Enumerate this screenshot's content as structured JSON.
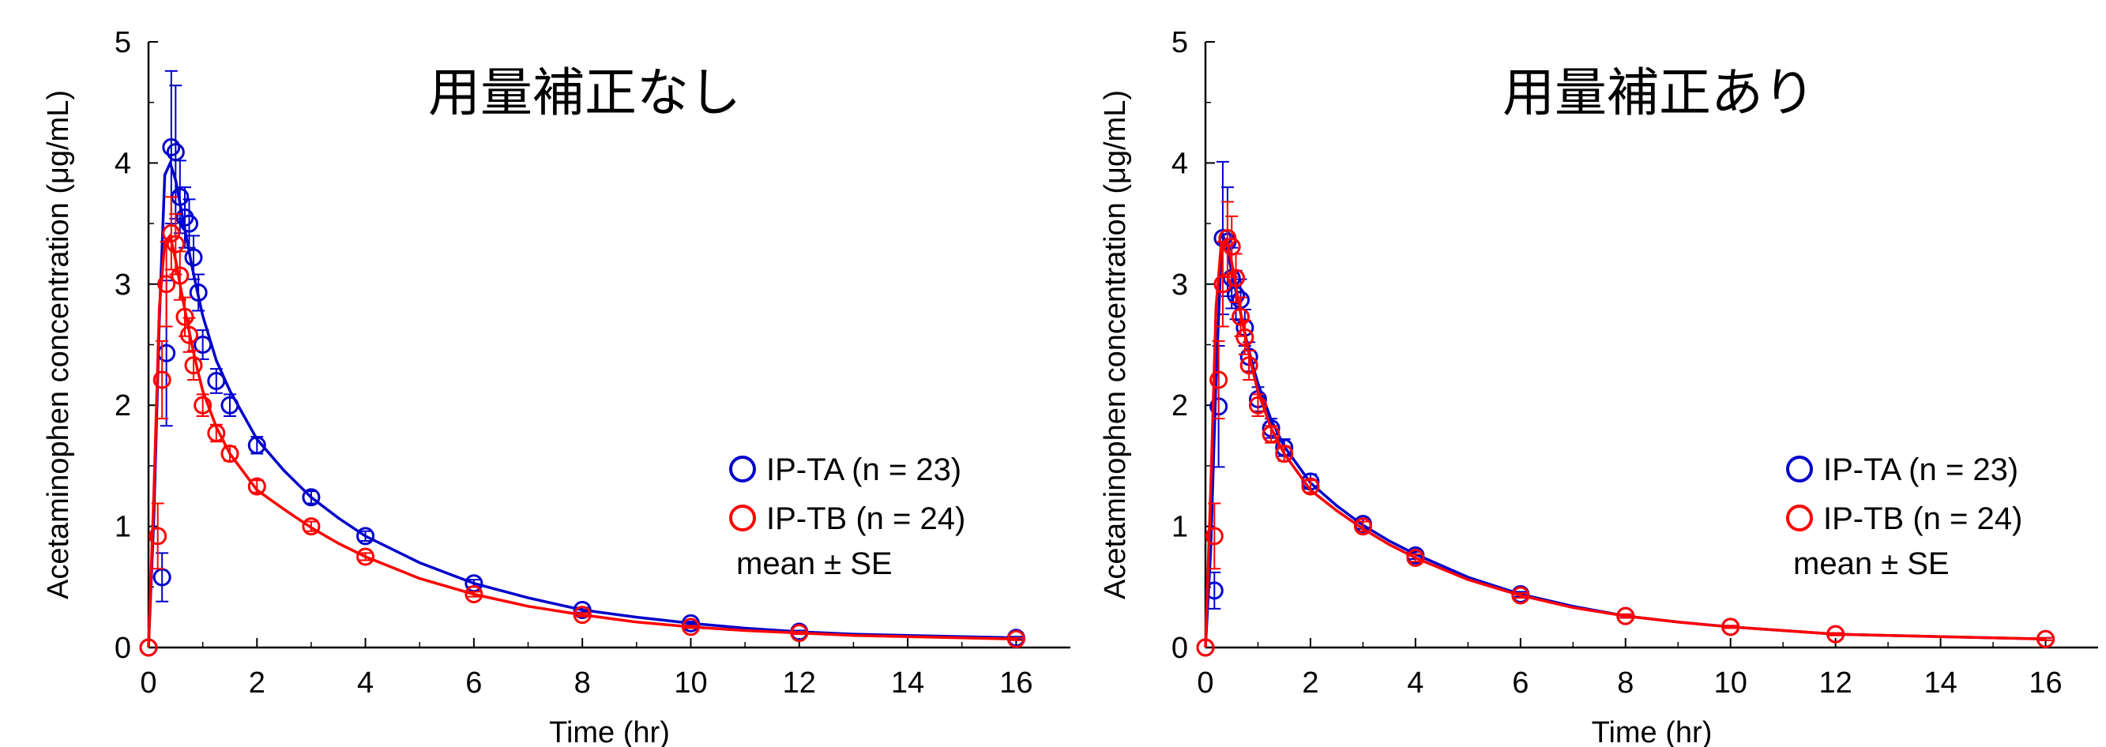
{
  "chart_data": [
    {
      "type": "line",
      "title": "用量補正なし",
      "xlabel": "Time (hr)",
      "ylabel": "Acetaminophen concentration (μg/mL)",
      "xlim": [
        0,
        17
      ],
      "ylim": [
        0,
        5
      ],
      "xticks": [
        "0",
        "2",
        "4",
        "6",
        "8",
        "10",
        "12",
        "14",
        "16"
      ],
      "yticks": [
        "0",
        "1",
        "2",
        "3",
        "4",
        "5"
      ],
      "legend_position": "right",
      "legend_note": "mean ± SE",
      "series": [
        {
          "name": "IP-TA (n = 23)",
          "color": "#0000cc",
          "points": [
            {
              "x": 0,
              "y": 0,
              "se": 0
            },
            {
              "x": 0.25,
              "y": 0.58,
              "se": 0.2
            },
            {
              "x": 0.33,
              "y": 2.43,
              "se": 0.6
            },
            {
              "x": 0.42,
              "y": 4.13,
              "se": 0.63
            },
            {
              "x": 0.5,
              "y": 4.09,
              "se": 0.55
            },
            {
              "x": 0.58,
              "y": 3.72,
              "se": 0.3
            },
            {
              "x": 0.67,
              "y": 3.55,
              "se": 0.25
            },
            {
              "x": 0.75,
              "y": 3.5,
              "se": 0.2
            },
            {
              "x": 0.83,
              "y": 3.22,
              "se": 0.18
            },
            {
              "x": 0.92,
              "y": 2.93,
              "se": 0.15
            },
            {
              "x": 1,
              "y": 2.5,
              "se": 0.12
            },
            {
              "x": 1.25,
              "y": 2.2,
              "se": 0.1
            },
            {
              "x": 1.5,
              "y": 2.0,
              "se": 0.09
            },
            {
              "x": 2,
              "y": 1.67,
              "se": 0.07
            },
            {
              "x": 3,
              "y": 1.24,
              "se": 0.05
            },
            {
              "x": 4,
              "y": 0.92,
              "se": 0.04
            },
            {
              "x": 6,
              "y": 0.53,
              "se": 0.03
            },
            {
              "x": 8,
              "y": 0.31,
              "se": 0.02
            },
            {
              "x": 10,
              "y": 0.2,
              "se": 0.015
            },
            {
              "x": 12,
              "y": 0.13,
              "se": 0.01
            },
            {
              "x": 16,
              "y": 0.08,
              "se": 0.01
            }
          ],
          "fit_x": [
            0,
            0.1,
            0.2,
            0.3,
            0.4,
            0.5,
            0.6,
            0.7,
            0.8,
            0.9,
            1,
            1.25,
            1.5,
            2,
            2.5,
            3,
            3.5,
            4,
            5,
            6,
            7,
            8,
            9,
            10,
            11,
            12,
            13,
            14,
            15,
            16
          ],
          "fit_y": [
            0,
            1.1,
            2.7,
            3.9,
            4.0,
            3.86,
            3.62,
            3.38,
            3.15,
            2.94,
            2.74,
            2.37,
            2.12,
            1.72,
            1.46,
            1.24,
            1.07,
            0.92,
            0.7,
            0.53,
            0.41,
            0.31,
            0.25,
            0.2,
            0.16,
            0.13,
            0.11,
            0.1,
            0.09,
            0.08
          ]
        },
        {
          "name": "IP-TB (n = 24)",
          "color": "#ff0000",
          "points": [
            {
              "x": 0,
              "y": 0,
              "se": 0
            },
            {
              "x": 0.17,
              "y": 0.92,
              "se": 0.27
            },
            {
              "x": 0.25,
              "y": 2.21,
              "se": 0.32
            },
            {
              "x": 0.33,
              "y": 3.0,
              "se": 0.35
            },
            {
              "x": 0.42,
              "y": 3.42,
              "se": 0.3
            },
            {
              "x": 0.5,
              "y": 3.33,
              "se": 0.25
            },
            {
              "x": 0.58,
              "y": 3.07,
              "se": 0.2
            },
            {
              "x": 0.67,
              "y": 2.73,
              "se": 0.16
            },
            {
              "x": 0.75,
              "y": 2.58,
              "se": 0.14
            },
            {
              "x": 0.83,
              "y": 2.33,
              "se": 0.12
            },
            {
              "x": 1,
              "y": 2.0,
              "se": 0.09
            },
            {
              "x": 1.25,
              "y": 1.77,
              "se": 0.07
            },
            {
              "x": 1.5,
              "y": 1.6,
              "se": 0.06
            },
            {
              "x": 2,
              "y": 1.33,
              "se": 0.05
            },
            {
              "x": 3,
              "y": 1.0,
              "se": 0.04
            },
            {
              "x": 4,
              "y": 0.75,
              "se": 0.03
            },
            {
              "x": 6,
              "y": 0.44,
              "se": 0.02
            },
            {
              "x": 8,
              "y": 0.27,
              "se": 0.015
            },
            {
              "x": 10,
              "y": 0.17,
              "se": 0.01
            },
            {
              "x": 12,
              "y": 0.12,
              "se": 0.01
            },
            {
              "x": 16,
              "y": 0.07,
              "se": 0.01
            }
          ],
          "fit_x": [
            0,
            0.1,
            0.2,
            0.3,
            0.4,
            0.5,
            0.6,
            0.7,
            0.8,
            0.9,
            1,
            1.25,
            1.5,
            2,
            2.5,
            3,
            3.5,
            4,
            5,
            6,
            7,
            8,
            9,
            10,
            11,
            12,
            13,
            14,
            15,
            16
          ],
          "fit_y": [
            0,
            1.3,
            2.8,
            3.35,
            3.4,
            3.2,
            2.95,
            2.72,
            2.5,
            2.3,
            2.12,
            1.82,
            1.6,
            1.3,
            1.14,
            0.99,
            0.86,
            0.75,
            0.57,
            0.44,
            0.34,
            0.27,
            0.21,
            0.17,
            0.14,
            0.12,
            0.1,
            0.09,
            0.08,
            0.07
          ]
        }
      ]
    },
    {
      "type": "line",
      "title": "用量補正あり",
      "xlabel": "Time (hr)",
      "ylabel": "Acetaminophen concentration (μg/mL)",
      "xlim": [
        0,
        17
      ],
      "ylim": [
        0,
        5
      ],
      "xticks": [
        "0",
        "2",
        "4",
        "6",
        "8",
        "10",
        "12",
        "14",
        "16"
      ],
      "yticks": [
        "0",
        "1",
        "2",
        "3",
        "4",
        "5"
      ],
      "legend_position": "right",
      "legend_note": "mean ± SE",
      "series": [
        {
          "name": "IP-TA (n = 23)",
          "color": "#0000cc",
          "points": [
            {
              "x": 0,
              "y": 0,
              "se": 0
            },
            {
              "x": 0.17,
              "y": 0.47,
              "se": 0.15
            },
            {
              "x": 0.25,
              "y": 1.99,
              "se": 0.5
            },
            {
              "x": 0.33,
              "y": 3.38,
              "se": 0.63
            },
            {
              "x": 0.42,
              "y": 3.35,
              "se": 0.45
            },
            {
              "x": 0.5,
              "y": 3.05,
              "se": 0.25
            },
            {
              "x": 0.58,
              "y": 2.91,
              "se": 0.2
            },
            {
              "x": 0.67,
              "y": 2.87,
              "se": 0.17
            },
            {
              "x": 0.75,
              "y": 2.64,
              "se": 0.15
            },
            {
              "x": 0.83,
              "y": 2.4,
              "se": 0.12
            },
            {
              "x": 1,
              "y": 2.05,
              "se": 0.1
            },
            {
              "x": 1.25,
              "y": 1.81,
              "se": 0.08
            },
            {
              "x": 1.5,
              "y": 1.65,
              "se": 0.07
            },
            {
              "x": 2,
              "y": 1.37,
              "se": 0.06
            },
            {
              "x": 3,
              "y": 1.02,
              "se": 0.04
            },
            {
              "x": 4,
              "y": 0.76,
              "se": 0.03
            },
            {
              "x": 6,
              "y": 0.44,
              "se": 0.02
            },
            {
              "x": 8,
              "y": 0.26,
              "se": 0.015
            },
            {
              "x": 10,
              "y": 0.17,
              "se": 0.01
            },
            {
              "x": 12,
              "y": 0.11,
              "se": 0.01
            },
            {
              "x": 16,
              "y": 0.07,
              "se": 0.01
            }
          ],
          "fit_x": [
            0,
            0.1,
            0.2,
            0.3,
            0.35,
            0.4,
            0.5,
            0.6,
            0.7,
            0.8,
            0.9,
            1,
            1.25,
            1.5,
            2,
            2.5,
            3,
            3.5,
            4,
            5,
            6,
            7,
            8,
            9,
            10,
            11,
            12,
            13,
            14,
            15,
            16
          ],
          "fit_y": [
            0,
            0.8,
            2.2,
            3.25,
            3.38,
            3.32,
            3.1,
            2.9,
            2.7,
            2.5,
            2.33,
            2.18,
            1.88,
            1.66,
            1.36,
            1.17,
            1.01,
            0.88,
            0.77,
            0.58,
            0.44,
            0.34,
            0.26,
            0.21,
            0.17,
            0.14,
            0.11,
            0.1,
            0.09,
            0.08,
            0.07
          ]
        },
        {
          "name": "IP-TB (n = 24)",
          "color": "#ff0000",
          "points": [
            {
              "x": 0,
              "y": 0,
              "se": 0
            },
            {
              "x": 0.17,
              "y": 0.92,
              "se": 0.27
            },
            {
              "x": 0.25,
              "y": 2.21,
              "se": 0.32
            },
            {
              "x": 0.33,
              "y": 3.0,
              "se": 0.35
            },
            {
              "x": 0.42,
              "y": 3.38,
              "se": 0.3
            },
            {
              "x": 0.5,
              "y": 3.31,
              "se": 0.25
            },
            {
              "x": 0.58,
              "y": 3.05,
              "se": 0.2
            },
            {
              "x": 0.67,
              "y": 2.73,
              "se": 0.16
            },
            {
              "x": 0.75,
              "y": 2.56,
              "se": 0.14
            },
            {
              "x": 0.83,
              "y": 2.33,
              "se": 0.12
            },
            {
              "x": 1,
              "y": 2.0,
              "se": 0.09
            },
            {
              "x": 1.25,
              "y": 1.76,
              "se": 0.07
            },
            {
              "x": 1.5,
              "y": 1.6,
              "se": 0.06
            },
            {
              "x": 2,
              "y": 1.33,
              "se": 0.05
            },
            {
              "x": 3,
              "y": 1.0,
              "se": 0.04
            },
            {
              "x": 4,
              "y": 0.74,
              "se": 0.03
            },
            {
              "x": 6,
              "y": 0.43,
              "se": 0.02
            },
            {
              "x": 8,
              "y": 0.26,
              "se": 0.015
            },
            {
              "x": 10,
              "y": 0.17,
              "se": 0.01
            },
            {
              "x": 12,
              "y": 0.11,
              "se": 0.01
            },
            {
              "x": 16,
              "y": 0.07,
              "se": 0.01
            }
          ],
          "fit_x": [
            0,
            0.1,
            0.2,
            0.3,
            0.4,
            0.5,
            0.6,
            0.7,
            0.8,
            0.9,
            1,
            1.25,
            1.5,
            2,
            2.5,
            3,
            3.5,
            4,
            5,
            6,
            7,
            8,
            9,
            10,
            11,
            12,
            13,
            14,
            15,
            16
          ],
          "fit_y": [
            0,
            1.3,
            2.8,
            3.33,
            3.37,
            3.18,
            2.93,
            2.7,
            2.48,
            2.29,
            2.11,
            1.81,
            1.6,
            1.3,
            1.13,
            0.98,
            0.85,
            0.74,
            0.56,
            0.43,
            0.33,
            0.26,
            0.21,
            0.17,
            0.14,
            0.11,
            0.1,
            0.09,
            0.08,
            0.07
          ]
        }
      ]
    }
  ]
}
